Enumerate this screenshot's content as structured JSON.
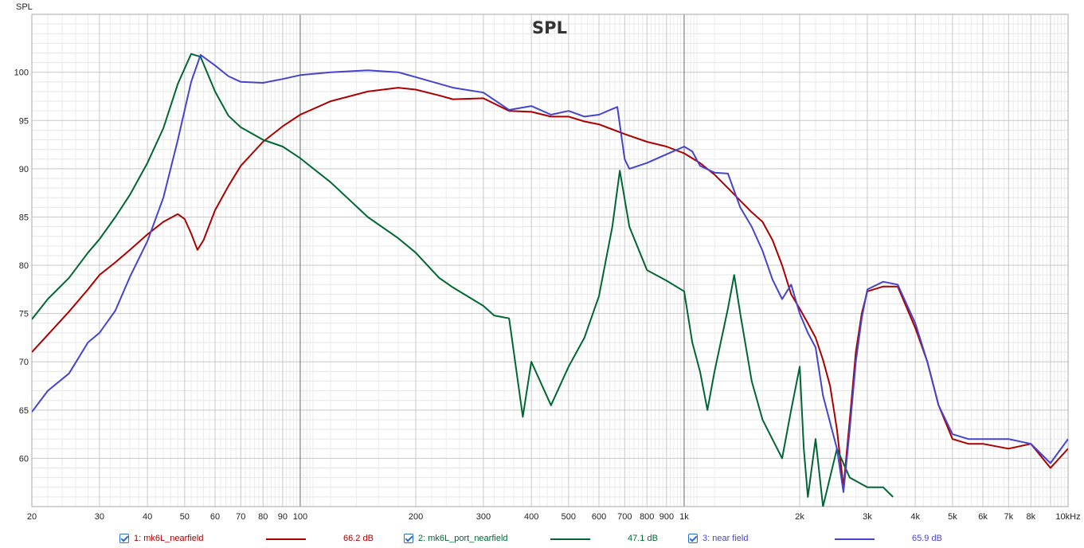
{
  "chart_data": {
    "type": "line",
    "title": "SPL",
    "ylabel": "SPL",
    "xscale": "log",
    "xlim": [
      20,
      10000
    ],
    "ylim": [
      55,
      106
    ],
    "grid": true,
    "y_ticks": [
      60,
      65,
      70,
      75,
      80,
      85,
      90,
      95,
      100
    ],
    "x_ticks": [
      {
        "v": 20,
        "label": "20"
      },
      {
        "v": 30,
        "label": "30"
      },
      {
        "v": 40,
        "label": "40"
      },
      {
        "v": 50,
        "label": "50"
      },
      {
        "v": 60,
        "label": "60"
      },
      {
        "v": 70,
        "label": "70"
      },
      {
        "v": 80,
        "label": "80"
      },
      {
        "v": 90,
        "label": "90"
      },
      {
        "v": 100,
        "label": "100"
      },
      {
        "v": 200,
        "label": "200"
      },
      {
        "v": 300,
        "label": "300"
      },
      {
        "v": 400,
        "label": "400"
      },
      {
        "v": 500,
        "label": "500"
      },
      {
        "v": 600,
        "label": "600"
      },
      {
        "v": 700,
        "label": "700"
      },
      {
        "v": 800,
        "label": "800"
      },
      {
        "v": 900,
        "label": "900"
      },
      {
        "v": 1000,
        "label": "1k"
      },
      {
        "v": 2000,
        "label": "2k"
      },
      {
        "v": 3000,
        "label": "3k"
      },
      {
        "v": 4000,
        "label": "4k"
      },
      {
        "v": 5000,
        "label": "5k"
      },
      {
        "v": 6000,
        "label": "6k"
      },
      {
        "v": 7000,
        "label": "7k"
      },
      {
        "v": 8000,
        "label": "8k"
      },
      {
        "v": 9000,
        "label": ""
      },
      {
        "v": 10000,
        "label": "10kHz"
      }
    ],
    "series": [
      {
        "name": "1: mk6L_nearfield",
        "color": "#aa0000",
        "legend_value": "66.2 dB",
        "points": [
          [
            20,
            71
          ],
          [
            22,
            72.8
          ],
          [
            25,
            75.2
          ],
          [
            28,
            77.5
          ],
          [
            30,
            79
          ],
          [
            33,
            80.3
          ],
          [
            36,
            81.6
          ],
          [
            40,
            83.2
          ],
          [
            44,
            84.5
          ],
          [
            48,
            85.3
          ],
          [
            50,
            84.8
          ],
          [
            52,
            83.3
          ],
          [
            54,
            81.6
          ],
          [
            56,
            82.6
          ],
          [
            60,
            85.7
          ],
          [
            65,
            88.2
          ],
          [
            70,
            90.3
          ],
          [
            80,
            92.8
          ],
          [
            90,
            94.4
          ],
          [
            100,
            95.6
          ],
          [
            120,
            97
          ],
          [
            150,
            98
          ],
          [
            180,
            98.4
          ],
          [
            200,
            98.2
          ],
          [
            230,
            97.6
          ],
          [
            250,
            97.2
          ],
          [
            300,
            97.3
          ],
          [
            350,
            96
          ],
          [
            400,
            95.9
          ],
          [
            450,
            95.4
          ],
          [
            500,
            95.4
          ],
          [
            550,
            94.9
          ],
          [
            600,
            94.6
          ],
          [
            700,
            93.6
          ],
          [
            800,
            92.8
          ],
          [
            900,
            92.3
          ],
          [
            1000,
            91.6
          ],
          [
            1100,
            90.6
          ],
          [
            1200,
            89.4
          ],
          [
            1300,
            88
          ],
          [
            1400,
            86.7
          ],
          [
            1500,
            85.5
          ],
          [
            1600,
            84.5
          ],
          [
            1700,
            82.6
          ],
          [
            1800,
            80
          ],
          [
            1900,
            77
          ],
          [
            2000,
            75.5
          ],
          [
            2100,
            74
          ],
          [
            2200,
            72.5
          ],
          [
            2300,
            70.2
          ],
          [
            2400,
            67.5
          ],
          [
            2500,
            63
          ],
          [
            2600,
            57
          ],
          [
            2700,
            64
          ],
          [
            2800,
            71
          ],
          [
            2900,
            75
          ],
          [
            3000,
            77.3
          ],
          [
            3300,
            77.8
          ],
          [
            3600,
            77.8
          ],
          [
            4000,
            73.5
          ],
          [
            4300,
            70
          ],
          [
            4600,
            65.5
          ],
          [
            5000,
            62
          ],
          [
            5500,
            61.5
          ],
          [
            6000,
            61.5
          ],
          [
            7000,
            61
          ],
          [
            8000,
            61.5
          ],
          [
            9000,
            59
          ],
          [
            10000,
            61
          ]
        ]
      },
      {
        "name": "2: mk6L_port_nearfield",
        "color": "#006633",
        "legend_value": "47.1 dB",
        "points": [
          [
            20,
            74.4
          ],
          [
            22,
            76.5
          ],
          [
            25,
            78.7
          ],
          [
            28,
            81.3
          ],
          [
            30,
            82.7
          ],
          [
            33,
            85
          ],
          [
            36,
            87.3
          ],
          [
            40,
            90.6
          ],
          [
            44,
            94.2
          ],
          [
            48,
            98.8
          ],
          [
            52,
            101.9
          ],
          [
            55,
            101.6
          ],
          [
            60,
            98
          ],
          [
            65,
            95.5
          ],
          [
            70,
            94.3
          ],
          [
            80,
            93
          ],
          [
            90,
            92.3
          ],
          [
            100,
            91.1
          ],
          [
            120,
            88.6
          ],
          [
            150,
            85
          ],
          [
            180,
            82.8
          ],
          [
            200,
            81.3
          ],
          [
            230,
            78.7
          ],
          [
            250,
            77.7
          ],
          [
            300,
            75.8
          ],
          [
            320,
            74.8
          ],
          [
            350,
            74.5
          ],
          [
            360,
            71
          ],
          [
            380,
            64.3
          ],
          [
            400,
            70
          ],
          [
            450,
            65.5
          ],
          [
            500,
            69.5
          ],
          [
            550,
            72.5
          ],
          [
            600,
            76.8
          ],
          [
            650,
            84
          ],
          [
            680,
            89.8
          ],
          [
            720,
            84
          ],
          [
            800,
            79.5
          ],
          [
            900,
            78.4
          ],
          [
            1000,
            77.3
          ],
          [
            1050,
            72
          ],
          [
            1100,
            69
          ],
          [
            1150,
            65
          ],
          [
            1200,
            69
          ],
          [
            1300,
            75.5
          ],
          [
            1350,
            79
          ],
          [
            1400,
            75
          ],
          [
            1500,
            68
          ],
          [
            1600,
            64
          ],
          [
            1800,
            60
          ],
          [
            1900,
            65
          ],
          [
            2000,
            69.5
          ],
          [
            2050,
            61
          ],
          [
            2100,
            56
          ],
          [
            2200,
            62
          ],
          [
            2300,
            55
          ],
          [
            2500,
            61
          ],
          [
            2700,
            58
          ],
          [
            3000,
            57
          ],
          [
            3300,
            57
          ],
          [
            3500,
            56
          ]
        ]
      },
      {
        "name": "3: near field",
        "color": "#4444cc",
        "legend_value": "65.9 dB",
        "points": [
          [
            20,
            64.8
          ],
          [
            22,
            67
          ],
          [
            25,
            68.8
          ],
          [
            28,
            72
          ],
          [
            30,
            73
          ],
          [
            33,
            75.3
          ],
          [
            36,
            78.8
          ],
          [
            40,
            82.5
          ],
          [
            44,
            87
          ],
          [
            48,
            93
          ],
          [
            52,
            99
          ],
          [
            55,
            101.8
          ],
          [
            60,
            100.7
          ],
          [
            65,
            99.6
          ],
          [
            70,
            99
          ],
          [
            80,
            98.9
          ],
          [
            90,
            99.3
          ],
          [
            100,
            99.7
          ],
          [
            120,
            100
          ],
          [
            150,
            100.2
          ],
          [
            180,
            100
          ],
          [
            200,
            99.5
          ],
          [
            250,
            98.4
          ],
          [
            300,
            97.9
          ],
          [
            350,
            96.1
          ],
          [
            400,
            96.5
          ],
          [
            450,
            95.6
          ],
          [
            500,
            96
          ],
          [
            550,
            95.4
          ],
          [
            600,
            95.6
          ],
          [
            650,
            96.2
          ],
          [
            670,
            96.4
          ],
          [
            700,
            91
          ],
          [
            720,
            90
          ],
          [
            800,
            90.6
          ],
          [
            900,
            91.5
          ],
          [
            1000,
            92.3
          ],
          [
            1050,
            91.8
          ],
          [
            1100,
            90.3
          ],
          [
            1200,
            89.6
          ],
          [
            1300,
            89.5
          ],
          [
            1400,
            86
          ],
          [
            1500,
            84
          ],
          [
            1600,
            81.5
          ],
          [
            1700,
            78.5
          ],
          [
            1800,
            76.5
          ],
          [
            1900,
            78
          ],
          [
            2000,
            75
          ],
          [
            2100,
            73
          ],
          [
            2200,
            71.5
          ],
          [
            2300,
            66.5
          ],
          [
            2500,
            61
          ],
          [
            2600,
            56.5
          ],
          [
            2700,
            63
          ],
          [
            2800,
            70
          ],
          [
            2900,
            74.5
          ],
          [
            3000,
            77.5
          ],
          [
            3300,
            78.3
          ],
          [
            3600,
            78
          ],
          [
            4000,
            74
          ],
          [
            4300,
            70
          ],
          [
            4600,
            65.5
          ],
          [
            5000,
            62.5
          ],
          [
            5500,
            62
          ],
          [
            6000,
            62
          ],
          [
            7000,
            62
          ],
          [
            8000,
            61.5
          ],
          [
            9000,
            59.5
          ],
          [
            10000,
            62
          ]
        ]
      }
    ]
  }
}
